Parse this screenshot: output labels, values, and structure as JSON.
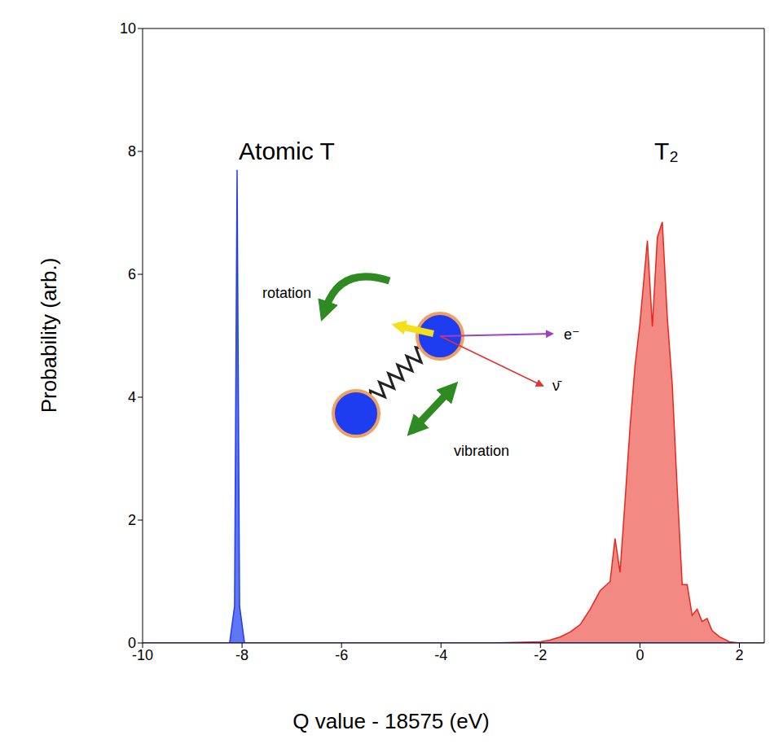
{
  "chart_data": {
    "type": "area",
    "x_label": "Q value - 18575 (eV)",
    "y_label": "Probability (arb.)",
    "x": [
      -10,
      -9,
      -8.5,
      -8.25,
      -8.15,
      -8.1,
      -8.05,
      -7.95,
      -7.5,
      -7,
      -6,
      -5,
      -4,
      -3,
      -2,
      -1.8,
      -1.6,
      -1.4,
      -1.2,
      -1.0,
      -0.8,
      -0.6,
      -0.5,
      -0.4,
      -0.3,
      -0.2,
      -0.1,
      0,
      0.1,
      0.15,
      0.25,
      0.35,
      0.45,
      0.55,
      0.65,
      0.75,
      0.85,
      0.95,
      1.05,
      1.15,
      1.25,
      1.35,
      1.45,
      1.6,
      1.8,
      2.0,
      2.5
    ],
    "series": [
      {
        "name": "Atomic T",
        "color": "#1e3cf0",
        "values": [
          0,
          0,
          0,
          0,
          0.6,
          7.7,
          0.6,
          0,
          0,
          0,
          0,
          0,
          0,
          0,
          0,
          0,
          0,
          0,
          0,
          0,
          0,
          0,
          0,
          0,
          0,
          0,
          0,
          0,
          0,
          0,
          0,
          0,
          0,
          0,
          0,
          0,
          0,
          0,
          0,
          0,
          0,
          0,
          0,
          0,
          0,
          0,
          0
        ]
      },
      {
        "name": "T₂",
        "color": "#e8281e",
        "values": [
          0,
          0,
          0,
          0,
          0,
          0,
          0,
          0,
          0,
          0,
          0,
          0,
          0,
          0,
          0.02,
          0.05,
          0.1,
          0.18,
          0.3,
          0.55,
          0.85,
          1.0,
          1.7,
          1.15,
          2.3,
          3.5,
          4.5,
          5.2,
          6.1,
          6.55,
          5.15,
          6.6,
          6.85,
          5.3,
          4.2,
          2.5,
          0.95,
          0.95,
          0.45,
          0.55,
          0.35,
          0.4,
          0.2,
          0.1,
          0.02,
          0,
          0
        ]
      }
    ],
    "xlim": [
      -10,
      2.5
    ],
    "xticks": [
      -10,
      -8,
      -6,
      -4,
      -2,
      0,
      2
    ],
    "ylim": [
      0,
      10
    ],
    "yticks": [
      0,
      2,
      4,
      6,
      8,
      10
    ],
    "grid": false,
    "annotations": [
      "rotation",
      "vibration",
      "e⁻",
      "ν̄"
    ]
  }
}
